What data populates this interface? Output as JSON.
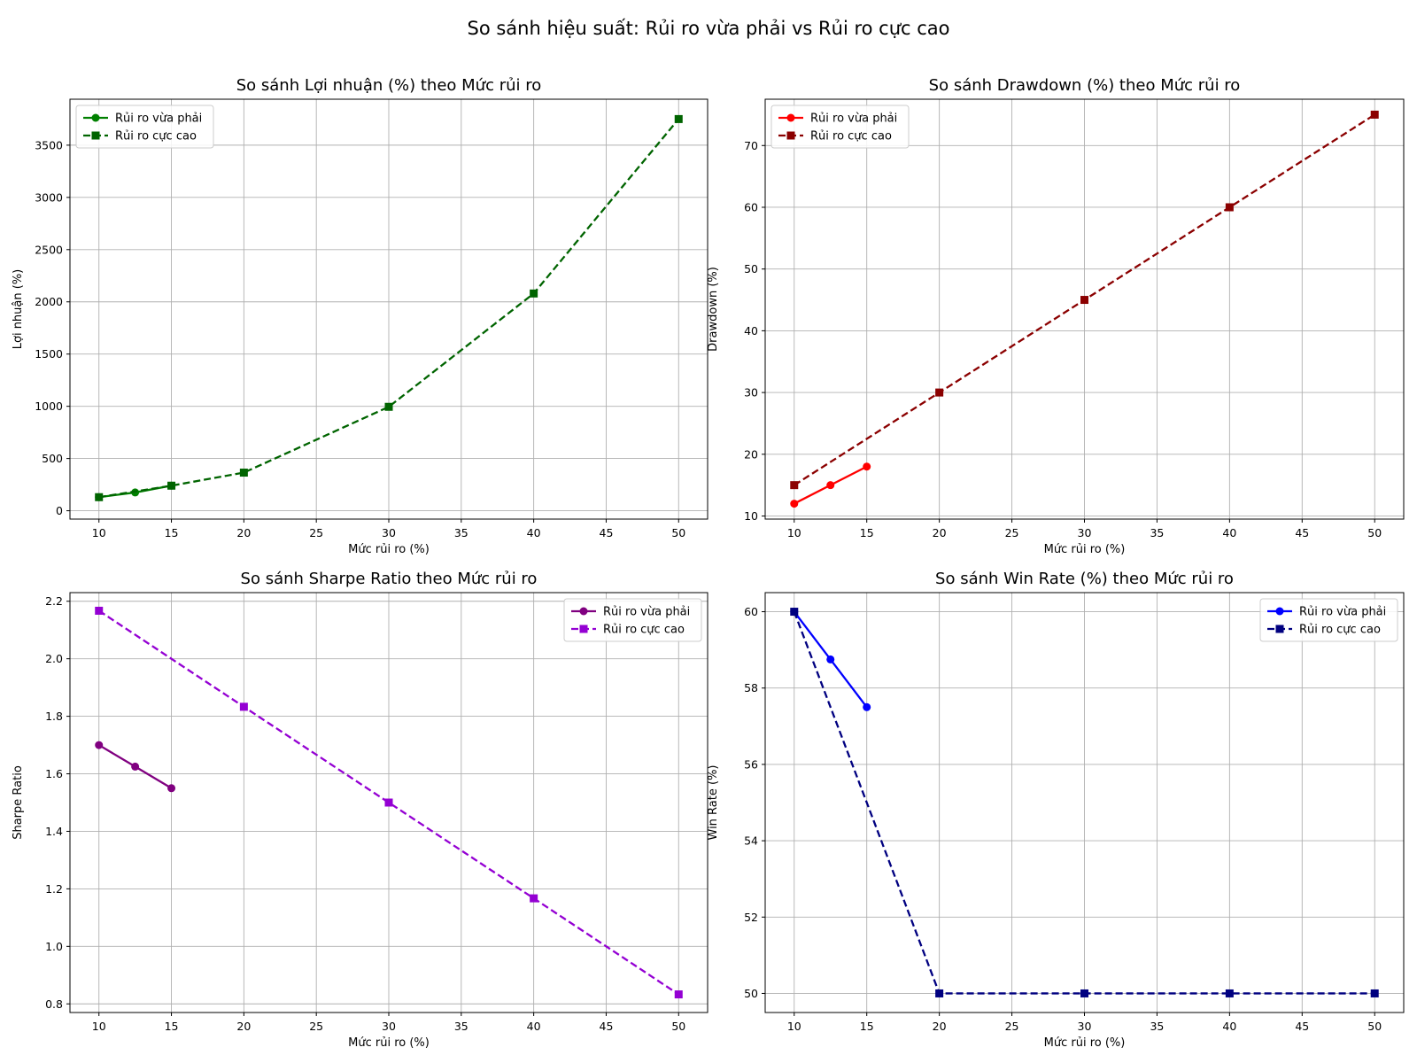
{
  "figure": {
    "title": "So sánh hiệu suất: Rủi ro vừa phải vs Rủi ro cực cao"
  },
  "chart_data": [
    {
      "type": "line",
      "title": "So sánh Lợi nhuận (%) theo Mức rủi ro",
      "xlabel": "Mức rủi ro (%)",
      "ylabel": "Lợi nhuận (%)",
      "xlim": [
        8,
        52
      ],
      "ylim": [
        -80,
        3940
      ],
      "xticks": [
        10,
        15,
        20,
        25,
        30,
        35,
        40,
        45,
        50
      ],
      "yticks": [
        0,
        500,
        1000,
        1500,
        2000,
        2500,
        3000,
        3500
      ],
      "grid": true,
      "legend_position": "upper left",
      "series": [
        {
          "name": "Rủi ro vừa phải",
          "color": "#008000",
          "dash": "solid",
          "marker": "circle",
          "x": [
            10,
            12.5,
            15
          ],
          "y": [
            130,
            175,
            240
          ]
        },
        {
          "name": "Rủi ro cực cao",
          "color": "#006400",
          "dash": "dashed",
          "marker": "square",
          "x": [
            10,
            15,
            20,
            30,
            40,
            50
          ],
          "y": [
            130,
            240,
            365,
            995,
            2080,
            3750
          ]
        }
      ]
    },
    {
      "type": "line",
      "title": "So sánh Drawdown (%) theo Mức rủi ro",
      "xlabel": "Mức rủi ro (%)",
      "ylabel": "Drawdown (%)",
      "xlim": [
        8,
        52
      ],
      "ylim": [
        9.5,
        77.5
      ],
      "xticks": [
        10,
        15,
        20,
        25,
        30,
        35,
        40,
        45,
        50
      ],
      "yticks": [
        10,
        20,
        30,
        40,
        50,
        60,
        70
      ],
      "grid": true,
      "legend_position": "upper left",
      "series": [
        {
          "name": "Rủi ro vừa phải",
          "color": "#ff0000",
          "dash": "solid",
          "marker": "circle",
          "x": [
            10,
            12.5,
            15
          ],
          "y": [
            12,
            15,
            18
          ]
        },
        {
          "name": "Rủi ro cực cao",
          "color": "#8b0000",
          "dash": "dashed",
          "marker": "square",
          "x": [
            10,
            20,
            30,
            40,
            50
          ],
          "y": [
            15,
            30,
            45,
            60,
            75
          ]
        }
      ]
    },
    {
      "type": "line",
      "title": "So sánh Sharpe Ratio theo Mức rủi ro",
      "xlabel": "Mức rủi ro (%)",
      "ylabel": "Sharpe Ratio",
      "xlim": [
        8,
        52
      ],
      "ylim": [
        0.77,
        2.23
      ],
      "xticks": [
        10,
        15,
        20,
        25,
        30,
        35,
        40,
        45,
        50
      ],
      "yticks": [
        0.8,
        1.0,
        1.2,
        1.4,
        1.6,
        1.8,
        2.0,
        2.2
      ],
      "ytick_labels": [
        "0.8",
        "1.0",
        "1.2",
        "1.4",
        "1.6",
        "1.8",
        "2.0",
        "2.2"
      ],
      "grid": true,
      "legend_position": "upper right",
      "series": [
        {
          "name": "Rủi ro vừa phải",
          "color": "#800080",
          "dash": "solid",
          "marker": "circle",
          "x": [
            10,
            12.5,
            15
          ],
          "y": [
            1.7,
            1.625,
            1.55
          ]
        },
        {
          "name": "Rủi ro cực cao",
          "color": "#9400d3",
          "dash": "dashed",
          "marker": "square",
          "x": [
            10,
            20,
            30,
            40,
            50
          ],
          "y": [
            2.167,
            1.833,
            1.5,
            1.167,
            0.833
          ]
        }
      ]
    },
    {
      "type": "line",
      "title": "So sánh Win Rate (%) theo Mức rủi ro",
      "xlabel": "Mức rủi ro (%)",
      "ylabel": "Win Rate (%)",
      "xlim": [
        8,
        52
      ],
      "ylim": [
        49.5,
        60.5
      ],
      "xticks": [
        10,
        15,
        20,
        25,
        30,
        35,
        40,
        45,
        50
      ],
      "yticks": [
        50,
        52,
        54,
        56,
        58,
        60
      ],
      "grid": true,
      "legend_position": "upper right",
      "series": [
        {
          "name": "Rủi ro vừa phải",
          "color": "#0000ff",
          "dash": "solid",
          "marker": "circle",
          "x": [
            10,
            12.5,
            15
          ],
          "y": [
            60,
            58.75,
            57.5
          ]
        },
        {
          "name": "Rủi ro cực cao",
          "color": "#000080",
          "dash": "dashed",
          "marker": "square",
          "x": [
            10,
            20,
            30,
            40,
            50
          ],
          "y": [
            60,
            50,
            50,
            50,
            50
          ]
        }
      ]
    }
  ]
}
